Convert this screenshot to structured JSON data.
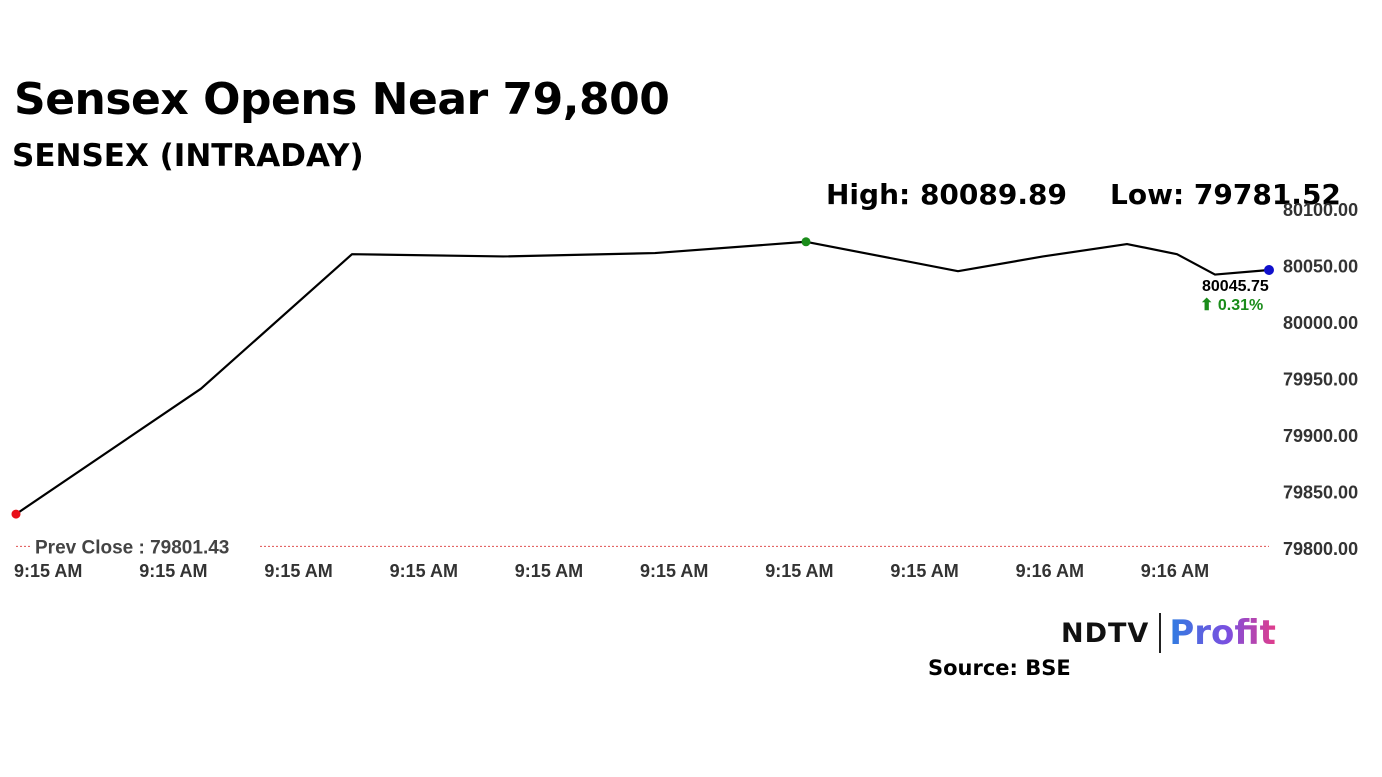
{
  "header": {
    "title": "Sensex Opens Near 79,800",
    "subtitle": "SENSEX (INTRADAY)",
    "high_label": "High: 80089.89",
    "low_label": "Low: 79781.52"
  },
  "branding": {
    "logo_ndtv": "NDTV",
    "logo_profit": "Profit",
    "source": "Source: BSE"
  },
  "colors": {
    "line": "#000000",
    "start_point": "#e8101a",
    "high_point": "#1a8c1a",
    "last_point": "#1010cc",
    "prev_close_line": "#e05050",
    "change_text": "#1a8c1a",
    "axis_text": "#333333"
  },
  "chart_data": {
    "type": "line",
    "title": "SENSEX (INTRADAY)",
    "xlabel": "",
    "ylabel": "",
    "x_tick_labels": [
      "9:15 AM",
      "9:15 AM",
      "9:15 AM",
      "9:15 AM",
      "9:15 AM",
      "9:15 AM",
      "9:15 AM",
      "9:15 AM",
      "9:16 AM",
      "9:16 AM"
    ],
    "y_tick_labels": [
      "80100.00",
      "80050.00",
      "80000.00",
      "79950.00",
      "79900.00",
      "79850.00",
      "79800.00"
    ],
    "ylim": [
      79800,
      80100
    ],
    "grid": false,
    "series": [
      {
        "values": [
          79830,
          79941,
          80060,
          80058,
          80061,
          80071,
          80045,
          80058,
          80069,
          80060,
          80042,
          80046
        ]
      }
    ],
    "last_value_label": "80045.75",
    "change_label": "⬆ 0.31%",
    "prev_close_label": "Prev Close : 79801.43",
    "prev_close_value": 79801.43
  }
}
